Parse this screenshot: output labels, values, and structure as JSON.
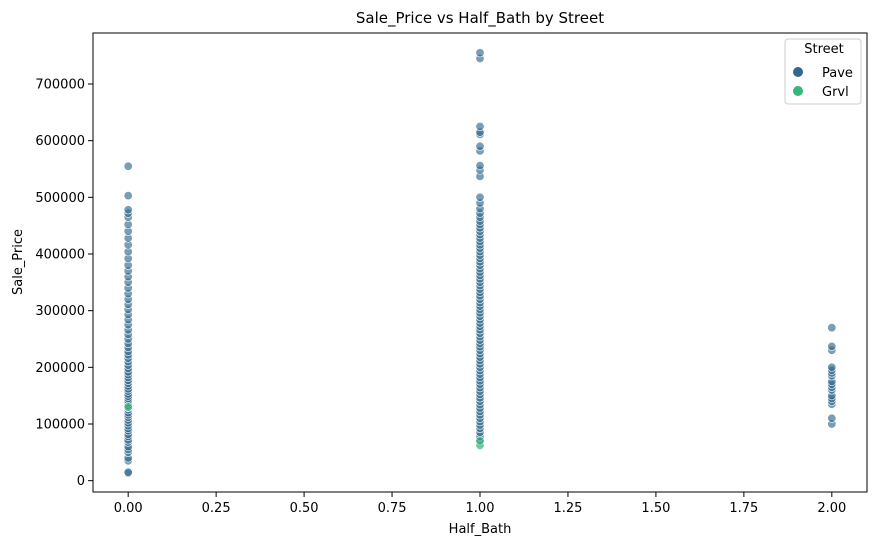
{
  "chart_data": {
    "type": "scatter",
    "title": "Sale_Price vs Half_Bath by Street",
    "xlabel": "Half_Bath",
    "ylabel": "Sale_Price",
    "xlim": [
      -0.1,
      2.1
    ],
    "ylim": [
      -20000,
      790000
    ],
    "x_ticks": [
      "0.00",
      "0.25",
      "0.50",
      "0.75",
      "1.00",
      "1.25",
      "1.50",
      "1.75",
      "2.00"
    ],
    "y_ticks": [
      "0",
      "100000",
      "200000",
      "300000",
      "400000",
      "500000",
      "600000",
      "700000"
    ],
    "grid": false,
    "legend": {
      "title": "Street",
      "placement": "top-right"
    },
    "series": [
      {
        "name": "Pave",
        "color": "#31688e",
        "points": [
          [
            0,
            13000
          ],
          [
            0,
            15000
          ],
          [
            0,
            35000
          ],
          [
            0,
            40000
          ],
          [
            0,
            50000
          ],
          [
            0,
            55000
          ],
          [
            0,
            60000
          ],
          [
            0,
            68000
          ],
          [
            0,
            72000
          ],
          [
            0,
            78000
          ],
          [
            0,
            82000
          ],
          [
            0,
            88000
          ],
          [
            0,
            92000
          ],
          [
            0,
            97000
          ],
          [
            0,
            102000
          ],
          [
            0,
            107000
          ],
          [
            0,
            112000
          ],
          [
            0,
            116000
          ],
          [
            0,
            120000
          ],
          [
            0,
            125000
          ],
          [
            0,
            129000
          ],
          [
            0,
            133000
          ],
          [
            0,
            137000
          ],
          [
            0,
            141000
          ],
          [
            0,
            145000
          ],
          [
            0,
            149000
          ],
          [
            0,
            153000
          ],
          [
            0,
            158000
          ],
          [
            0,
            162000
          ],
          [
            0,
            167000
          ],
          [
            0,
            172000
          ],
          [
            0,
            177000
          ],
          [
            0,
            182000
          ],
          [
            0,
            187000
          ],
          [
            0,
            192000
          ],
          [
            0,
            198000
          ],
          [
            0,
            204000
          ],
          [
            0,
            210000
          ],
          [
            0,
            216000
          ],
          [
            0,
            222000
          ],
          [
            0,
            228000
          ],
          [
            0,
            235000
          ],
          [
            0,
            242000
          ],
          [
            0,
            250000
          ],
          [
            0,
            258000
          ],
          [
            0,
            266000
          ],
          [
            0,
            275000
          ],
          [
            0,
            284000
          ],
          [
            0,
            293000
          ],
          [
            0,
            302000
          ],
          [
            0,
            311000
          ],
          [
            0,
            320000
          ],
          [
            0,
            330000
          ],
          [
            0,
            340000
          ],
          [
            0,
            350000
          ],
          [
            0,
            360000
          ],
          [
            0,
            370000
          ],
          [
            0,
            380000
          ],
          [
            0,
            392000
          ],
          [
            0,
            404000
          ],
          [
            0,
            416000
          ],
          [
            0,
            428000
          ],
          [
            0,
            440000
          ],
          [
            0,
            452000
          ],
          [
            0,
            465000
          ],
          [
            0,
            472000
          ],
          [
            0,
            478000
          ],
          [
            0,
            503000
          ],
          [
            0,
            555000
          ],
          [
            1,
            67000
          ],
          [
            1,
            72000
          ],
          [
            1,
            78000
          ],
          [
            1,
            85000
          ],
          [
            1,
            92000
          ],
          [
            1,
            98000
          ],
          [
            1,
            104000
          ],
          [
            1,
            110000
          ],
          [
            1,
            116000
          ],
          [
            1,
            122000
          ],
          [
            1,
            128000
          ],
          [
            1,
            134000
          ],
          [
            1,
            140000
          ],
          [
            1,
            146000
          ],
          [
            1,
            152000
          ],
          [
            1,
            158000
          ],
          [
            1,
            164000
          ],
          [
            1,
            170000
          ],
          [
            1,
            176000
          ],
          [
            1,
            182000
          ],
          [
            1,
            188000
          ],
          [
            1,
            194000
          ],
          [
            1,
            200000
          ],
          [
            1,
            206000
          ],
          [
            1,
            212000
          ],
          [
            1,
            218000
          ],
          [
            1,
            224000
          ],
          [
            1,
            230000
          ],
          [
            1,
            236000
          ],
          [
            1,
            242000
          ],
          [
            1,
            248000
          ],
          [
            1,
            254000
          ],
          [
            1,
            260000
          ],
          [
            1,
            266000
          ],
          [
            1,
            272000
          ],
          [
            1,
            278000
          ],
          [
            1,
            284000
          ],
          [
            1,
            290000
          ],
          [
            1,
            296000
          ],
          [
            1,
            302000
          ],
          [
            1,
            308000
          ],
          [
            1,
            314000
          ],
          [
            1,
            320000
          ],
          [
            1,
            326000
          ],
          [
            1,
            332000
          ],
          [
            1,
            338000
          ],
          [
            1,
            344000
          ],
          [
            1,
            350000
          ],
          [
            1,
            356000
          ],
          [
            1,
            362000
          ],
          [
            1,
            368000
          ],
          [
            1,
            374000
          ],
          [
            1,
            380000
          ],
          [
            1,
            386000
          ],
          [
            1,
            392000
          ],
          [
            1,
            398000
          ],
          [
            1,
            404000
          ],
          [
            1,
            410000
          ],
          [
            1,
            416000
          ],
          [
            1,
            422000
          ],
          [
            1,
            428000
          ],
          [
            1,
            434000
          ],
          [
            1,
            440000
          ],
          [
            1,
            446000
          ],
          [
            1,
            452000
          ],
          [
            1,
            458000
          ],
          [
            1,
            465000
          ],
          [
            1,
            472000
          ],
          [
            1,
            480000
          ],
          [
            1,
            490000
          ],
          [
            1,
            500000
          ],
          [
            1,
            537000
          ],
          [
            1,
            548000
          ],
          [
            1,
            556000
          ],
          [
            1,
            582000
          ],
          [
            1,
            590000
          ],
          [
            1,
            611000
          ],
          [
            1,
            615000
          ],
          [
            1,
            625000
          ],
          [
            1,
            745000
          ],
          [
            1,
            755000
          ],
          [
            2,
            100000
          ],
          [
            2,
            110000
          ],
          [
            2,
            135000
          ],
          [
            2,
            140000
          ],
          [
            2,
            145000
          ],
          [
            2,
            150000
          ],
          [
            2,
            160000
          ],
          [
            2,
            165000
          ],
          [
            2,
            170000
          ],
          [
            2,
            175000
          ],
          [
            2,
            185000
          ],
          [
            2,
            190000
          ],
          [
            2,
            195000
          ],
          [
            2,
            200000
          ],
          [
            2,
            230000
          ],
          [
            2,
            237000
          ],
          [
            2,
            270000
          ]
        ]
      },
      {
        "name": "Grvl",
        "color": "#35b779",
        "points": [
          [
            1,
            62000
          ],
          [
            1,
            70000
          ],
          [
            0,
            130000
          ]
        ]
      }
    ]
  }
}
